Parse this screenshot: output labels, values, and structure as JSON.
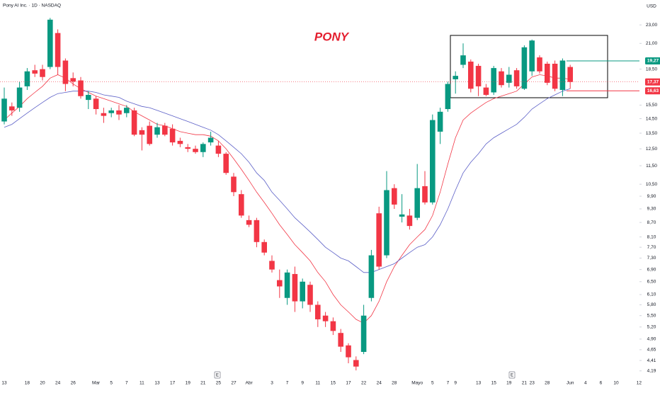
{
  "chart_data": {
    "type": "candlestick",
    "title": "Pony AI Inc. · 1D · NASDAQ",
    "currency": "USD",
    "annotation": "PONY",
    "log_scale": true,
    "up_color": "#089981",
    "down_color": "#f23645",
    "categories": [
      "13",
      null,
      null,
      "18",
      null,
      "20",
      null,
      "24",
      null,
      "26",
      null,
      null,
      "Mar",
      null,
      "5",
      null,
      "7",
      null,
      "11",
      null,
      "13",
      null,
      "17",
      null,
      "19",
      null,
      "21",
      null,
      "25",
      null,
      "27",
      null,
      "Abr",
      null,
      null,
      "3",
      null,
      "7",
      null,
      "9",
      null,
      "11",
      null,
      "15",
      null,
      "17",
      null,
      "22",
      null,
      "24",
      null,
      "28",
      null,
      null,
      "Mayo",
      null,
      "5",
      null,
      "7",
      "9",
      null,
      null,
      "13",
      null,
      "15",
      null,
      "19",
      null,
      "21",
      "23",
      null,
      "28",
      null,
      null,
      "Jun",
      null,
      "4",
      null,
      "6",
      null,
      "10",
      null,
      null,
      "12",
      null,
      null
    ],
    "open": [
      14.3,
      15.4,
      15.3,
      17.0,
      18.4,
      18.5,
      18.7,
      22.1,
      19.3,
      17.7,
      17.5,
      15.9,
      16.0,
      14.9,
      14.9,
      15.1,
      14.9,
      15.1,
      13.7,
      14.0,
      13.4,
      14.0,
      13.8,
      13.0,
      12.6,
      12.5,
      12.3,
      12.9,
      12.7,
      12.2,
      10.9,
      10.0,
      8.8,
      8.8,
      7.9,
      7.2,
      6.55,
      6.0,
      6.75,
      5.9,
      6.4,
      5.8,
      5.5,
      5.35,
      5.05,
      4.75,
      4.42,
      4.6,
      6.0,
      9.1,
      7.4,
      10.3,
      8.95,
      9.0,
      8.9,
      10.4,
      9.6,
      13.6,
      15.2,
      17.6,
      18.9,
      19.2,
      18.8,
      16.9,
      16.5,
      18.3,
      17.3,
      18.4,
      16.8,
      18.3,
      19.6,
      19.0,
      19.0,
      16.7,
      18.7,
      null,
      null,
      null,
      null,
      null,
      null,
      null,
      null,
      null,
      null,
      null
    ],
    "high": [
      16.9,
      15.7,
      17.4,
      18.6,
      18.9,
      18.9,
      23.8,
      22.5,
      19.5,
      18.2,
      17.8,
      16.6,
      16.2,
      15.3,
      15.3,
      15.5,
      15.5,
      15.3,
      13.9,
      14.3,
      14.2,
      14.2,
      14.1,
      13.2,
      12.8,
      12.7,
      12.9,
      13.6,
      13.0,
      12.3,
      11.1,
      10.2,
      9.0,
      8.9,
      8.0,
      7.4,
      6.9,
      6.9,
      7.0,
      6.6,
      6.5,
      5.9,
      5.6,
      5.45,
      5.15,
      4.8,
      4.5,
      5.8,
      7.6,
      9.4,
      11.2,
      10.5,
      10.0,
      9.3,
      11.6,
      11.2,
      14.8,
      15.3,
      17.4,
      18.3,
      21.0,
      19.4,
      19.0,
      17.2,
      18.8,
      18.6,
      18.7,
      18.6,
      20.8,
      21.4,
      19.8,
      19.2,
      19.3,
      19.5,
      18.9,
      null,
      null,
      null,
      null,
      null,
      null,
      null,
      null,
      null,
      null,
      null
    ],
    "low": [
      14.1,
      14.7,
      15.0,
      16.7,
      17.8,
      17.5,
      18.5,
      18.0,
      16.6,
      17.0,
      16.0,
      15.2,
      14.8,
      14.2,
      14.6,
      14.4,
      14.6,
      13.3,
      12.4,
      12.7,
      13.2,
      13.3,
      12.7,
      12.6,
      12.3,
      12.2,
      12.0,
      12.7,
      12.0,
      11.0,
      9.9,
      8.9,
      8.5,
      7.7,
      7.4,
      6.8,
      6.0,
      5.8,
      5.6,
      5.7,
      5.6,
      5.2,
      5.2,
      5.0,
      4.6,
      4.35,
      4.2,
      4.55,
      5.9,
      6.9,
      7.3,
      9.3,
      8.7,
      8.4,
      8.8,
      9.5,
      9.5,
      12.8,
      15.0,
      16.4,
      18.6,
      16.5,
      16.2,
      16.2,
      16.3,
      16.9,
      16.9,
      16.8,
      16.7,
      17.9,
      18.1,
      17.1,
      16.6,
      16.2,
      16.8,
      null,
      null,
      null,
      null,
      null,
      null,
      null,
      null,
      null,
      null,
      null
    ],
    "close": [
      16.0,
      15.1,
      16.9,
      18.3,
      18.1,
      17.8,
      23.6,
      18.7,
      17.2,
      17.4,
      16.2,
      16.3,
      15.2,
      14.7,
      15.1,
      14.8,
      15.3,
      13.4,
      13.4,
      12.8,
      13.9,
      13.4,
      12.9,
      12.8,
      12.5,
      12.3,
      12.8,
      13.2,
      12.2,
      11.1,
      10.1,
      9.0,
      8.6,
      7.9,
      7.5,
      6.9,
      6.35,
      6.8,
      5.9,
      6.5,
      5.8,
      5.4,
      5.35,
      5.1,
      4.72,
      4.48,
      4.28,
      5.5,
      7.4,
      7.0,
      10.2,
      9.5,
      9.05,
      8.55,
      10.3,
      9.6,
      14.4,
      15.0,
      17.2,
      17.9,
      19.8,
      16.8,
      17.0,
      16.3,
      18.6,
      17.1,
      18.0,
      17.0,
      20.6,
      21.3,
      18.3,
      17.3,
      16.8,
      19.3,
      17.37,
      null,
      null,
      null,
      null,
      null,
      null,
      null,
      null,
      null,
      null,
      null
    ],
    "ma_series": [
      {
        "color": "#f23645",
        "values": [
          14.4,
          14.9,
          15.4,
          16.0,
          16.5,
          17.0,
          17.7,
          18.0,
          17.7,
          17.2,
          16.8,
          16.5,
          16.2,
          16.0,
          15.8,
          15.6,
          15.4,
          15.0,
          14.7,
          14.4,
          14.1,
          14.0,
          13.8,
          13.6,
          13.5,
          13.4,
          13.4,
          13.3,
          13.0,
          12.5,
          11.9,
          11.3,
          10.7,
          10.1,
          9.6,
          9.1,
          8.6,
          8.2,
          7.8,
          7.5,
          7.2,
          6.8,
          6.5,
          6.1,
          5.8,
          5.6,
          5.4,
          5.3,
          5.5,
          5.9,
          6.5,
          7.0,
          7.4,
          7.8,
          8.1,
          8.4,
          9.0,
          10.1,
          11.6,
          13.2,
          14.4,
          14.9,
          15.3,
          15.7,
          16.0,
          16.2,
          16.4,
          16.6,
          17.2,
          17.8,
          18.0,
          17.9,
          17.7,
          17.7,
          17.6,
          null,
          null,
          null,
          null,
          null,
          null,
          null,
          null,
          null,
          null,
          null
        ]
      },
      {
        "color": "#5b5fc7",
        "values": [
          13.9,
          14.1,
          14.5,
          14.9,
          15.3,
          15.7,
          16.1,
          16.4,
          16.5,
          16.6,
          16.6,
          16.6,
          16.5,
          16.3,
          16.2,
          16.1,
          15.8,
          15.6,
          15.4,
          15.3,
          15.1,
          14.9,
          14.7,
          14.5,
          14.3,
          14.1,
          13.9,
          13.7,
          13.4,
          13.0,
          12.6,
          12.2,
          11.7,
          11.1,
          10.7,
          10.1,
          9.7,
          9.3,
          8.9,
          8.6,
          8.3,
          8.0,
          7.7,
          7.5,
          7.3,
          7.2,
          7.0,
          6.8,
          6.8,
          6.9,
          7.0,
          7.1,
          7.3,
          7.5,
          7.7,
          7.8,
          8.1,
          8.6,
          9.3,
          10.2,
          11.1,
          11.7,
          12.2,
          12.8,
          13.2,
          13.5,
          13.8,
          14.1,
          14.6,
          15.2,
          15.6,
          16.0,
          16.3,
          16.6,
          16.8,
          null,
          null,
          null,
          null,
          null,
          null,
          null,
          null,
          null,
          null,
          null
        ]
      }
    ],
    "price_lines": [
      {
        "value": 19.27,
        "label": "19,27",
        "color": "#089981"
      },
      {
        "value": 17.37,
        "label": "17,37",
        "color": "#f23645"
      },
      {
        "value": 16.63,
        "label": "16,63",
        "color": "#f23645"
      }
    ],
    "event_markers": [
      "E",
      "E"
    ],
    "ylim": [
      4.1,
      26
    ],
    "yticks": [
      {
        "value": 23,
        "label": "23,00"
      },
      {
        "value": 21,
        "label": "21,00"
      },
      {
        "value": 18.5,
        "label": "18,50"
      },
      {
        "value": 15.5,
        "label": "15,50"
      },
      {
        "value": 14.5,
        "label": "14,50"
      },
      {
        "value": 13.5,
        "label": "13,50"
      },
      {
        "value": 12.5,
        "label": "12,50"
      },
      {
        "value": 11.5,
        "label": "11,50"
      },
      {
        "value": 10.5,
        "label": "10,50"
      },
      {
        "value": 9.9,
        "label": "9,90"
      },
      {
        "value": 9.3,
        "label": "9,30"
      },
      {
        "value": 8.7,
        "label": "8,70"
      },
      {
        "value": 8.1,
        "label": "8,10"
      },
      {
        "value": 7.7,
        "label": "7,70"
      },
      {
        "value": 7.3,
        "label": "7,30"
      },
      {
        "value": 6.9,
        "label": "6,90"
      },
      {
        "value": 6.5,
        "label": "6,50"
      },
      {
        "value": 6.1,
        "label": "6,10"
      },
      {
        "value": 5.8,
        "label": "5,80"
      },
      {
        "value": 5.5,
        "label": "5,50"
      },
      {
        "value": 5.2,
        "label": "5,20"
      },
      {
        "value": 4.9,
        "label": "4,90"
      },
      {
        "value": 4.65,
        "label": "4,65"
      },
      {
        "value": 4.41,
        "label": "4,41"
      },
      {
        "value": 4.19,
        "label": "4,19"
      }
    ]
  }
}
